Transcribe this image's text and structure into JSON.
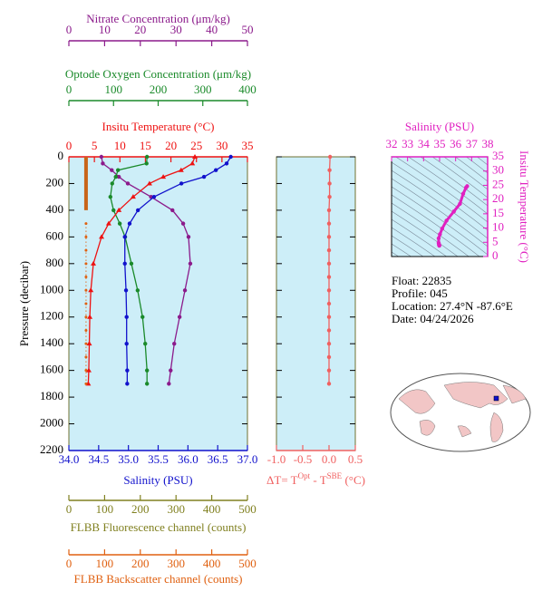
{
  "chart_data": [
    {
      "type": "profile",
      "ylabel": "Pressure (decibar)",
      "ylim": [
        0,
        2200
      ],
      "yticks": [
        0,
        200,
        400,
        600,
        800,
        1000,
        1200,
        1400,
        1600,
        1800,
        2000,
        2200
      ],
      "ytick_labels": true,
      "background": "#cdeef8",
      "xaxes": [
        {
          "label": "Nitrate Concentration (μm/kg)",
          "lim": [
            0,
            50
          ],
          "ticks": [
            0,
            10,
            20,
            30,
            40,
            50
          ],
          "color": "#8b1a8b",
          "side": "top"
        },
        {
          "label": "Optode Oxygen Concentration (μm/kg)",
          "lim": [
            0,
            400
          ],
          "ticks": [
            0,
            100,
            200,
            300,
            400
          ],
          "color": "#1a8a2a",
          "side": "top"
        },
        {
          "label": "Insitu Temperature (°C)",
          "lim": [
            0,
            35
          ],
          "ticks": [
            0,
            5,
            10,
            15,
            20,
            25,
            30,
            35
          ],
          "color": "#ee1111",
          "side": "top"
        },
        {
          "label": "Salinity (PSU)",
          "lim": [
            34,
            37
          ],
          "ticks": [
            {
              "value": 34,
              "label": "34.0"
            },
            34.5,
            {
              "value": 35,
              "label": "35.0"
            },
            35.5,
            {
              "value": 36,
              "label": "36.0"
            },
            36.5,
            {
              "value": 37,
              "label": "37.0"
            }
          ],
          "color": "#1111cc",
          "side": "bottom"
        },
        {
          "label": "FLBB Fluorescence channel (counts)",
          "lim": [
            0,
            500
          ],
          "ticks": [
            0,
            100,
            200,
            300,
            400,
            500
          ],
          "color": "#808020",
          "side": "bottom"
        },
        {
          "label": "FLBB Backscatter channel (counts)",
          "lim": [
            0,
            500
          ],
          "ticks": [
            0,
            100,
            200,
            300,
            400,
            500
          ],
          "color": "#e06010",
          "side": "bottom"
        }
      ],
      "series": [
        {
          "axis": 0,
          "color": "#8b1a8b",
          "marker": "circle",
          "pressure": [
            0,
            50,
            100,
            150,
            200,
            300,
            400,
            500,
            600,
            800,
            1000,
            1200,
            1400,
            1600,
            1700
          ],
          "values": [
            9.1,
            9.5,
            12,
            14,
            16.5,
            23,
            29,
            32,
            33.5,
            34,
            32.5,
            31,
            29.5,
            28.5,
            28
          ]
        },
        {
          "axis": 1,
          "color": "#1a8a2a",
          "marker": "circle",
          "pressure": [
            0,
            50,
            100,
            150,
            200,
            300,
            400,
            500,
            600,
            800,
            1000,
            1200,
            1400,
            1600,
            1700
          ],
          "values": [
            175,
            174,
            110,
            105,
            97,
            93,
            100,
            114,
            126,
            140,
            154,
            165,
            171,
            175,
            175
          ]
        },
        {
          "axis": 2,
          "color": "#ee1111",
          "marker": "triangle",
          "pressure": [
            0,
            50,
            100,
            150,
            200,
            300,
            400,
            500,
            600,
            800,
            1000,
            1200,
            1400,
            1600,
            1700
          ],
          "values": [
            24.7,
            24.2,
            22,
            18.5,
            15.8,
            12.6,
            9.8,
            7.8,
            6.4,
            4.8,
            4.3,
            4.1,
            4.0,
            3.9,
            3.8
          ]
        },
        {
          "axis": 3,
          "color": "#1111cc",
          "marker": "circle",
          "pressure": [
            0,
            50,
            100,
            150,
            200,
            300,
            400,
            500,
            600,
            800,
            1000,
            1200,
            1400,
            1600,
            1700
          ],
          "values": [
            36.72,
            36.65,
            36.47,
            36.27,
            35.89,
            35.43,
            35.16,
            35.02,
            34.94,
            34.94,
            34.96,
            34.97,
            34.97,
            34.98,
            34.98
          ]
        },
        {
          "axis": 4,
          "color": "#c86418",
          "marker": "bar",
          "pressure": [
            0,
            100,
            200,
            300,
            400
          ],
          "values": [
            48,
            48,
            48,
            48,
            48
          ]
        },
        {
          "axis": 5,
          "color": "#e06010",
          "marker": "dot",
          "pressure": [
            500,
            600,
            700,
            800,
            900,
            1000,
            1100,
            1200,
            1300,
            1400,
            1500,
            1600,
            1700
          ],
          "values": [
            48,
            48,
            48,
            48,
            48,
            48,
            48,
            48,
            48,
            48,
            48,
            48,
            48
          ]
        }
      ]
    },
    {
      "type": "profile",
      "ylim": [
        0,
        2200
      ],
      "yticks": [
        0,
        200,
        400,
        600,
        800,
        1000,
        1200,
        1400,
        1600,
        1800,
        2000,
        2200
      ],
      "ytick_labels": false,
      "background": "#cdeef8",
      "xaxes": [
        {
          "label": [
            "ΔT= T",
            "Opt",
            " - T",
            "SBE",
            " (°C)"
          ],
          "lim": [
            -1,
            0.5
          ],
          "ticks": [
            {
              "value": -1,
              "label": "-1.0"
            },
            -0.5,
            {
              "value": 0,
              "label": "0.0"
            },
            0.5
          ],
          "color": "#f06060",
          "side": "bottom"
        }
      ],
      "series": [
        {
          "axis": 0,
          "color": "#f06060",
          "marker": "circle",
          "pressure": [
            0,
            100,
            200,
            300,
            400,
            500,
            600,
            700,
            800,
            900,
            1000,
            1100,
            1200,
            1300,
            1400,
            1500,
            1600,
            1700
          ],
          "values": [
            0.02,
            0.01,
            0.01,
            0.01,
            0,
            0,
            0,
            0,
            0,
            0,
            0,
            0,
            0,
            0,
            0,
            0,
            0,
            0
          ]
        }
      ]
    },
    {
      "type": "ts",
      "xlabel": "Salinity (PSU)",
      "xlim": [
        32,
        38
      ],
      "xticks": [
        32,
        33,
        34,
        35,
        36,
        37,
        38
      ],
      "ylabel": "Insitu Temperature (°C)",
      "ylim": [
        0,
        35
      ],
      "yticks": [
        0,
        5,
        10,
        15,
        20,
        25,
        30,
        35
      ],
      "color": "#e020c0",
      "background": "#cdeef8",
      "salinity": [
        36.72,
        36.65,
        36.47,
        36.27,
        35.89,
        35.43,
        35.16,
        35.02,
        34.94,
        34.94,
        34.96,
        34.97,
        34.97,
        34.98,
        34.98
      ],
      "temperature": [
        24.7,
        24.2,
        22,
        18.5,
        15.8,
        12.6,
        9.8,
        7.8,
        6.4,
        4.8,
        4.3,
        4.1,
        4.0,
        3.9,
        3.8
      ]
    }
  ],
  "info": [
    "Float:  22835",
    "Profile:  045",
    "Location:  27.4°N  -87.6°E",
    "Date:  04/24/2026"
  ]
}
